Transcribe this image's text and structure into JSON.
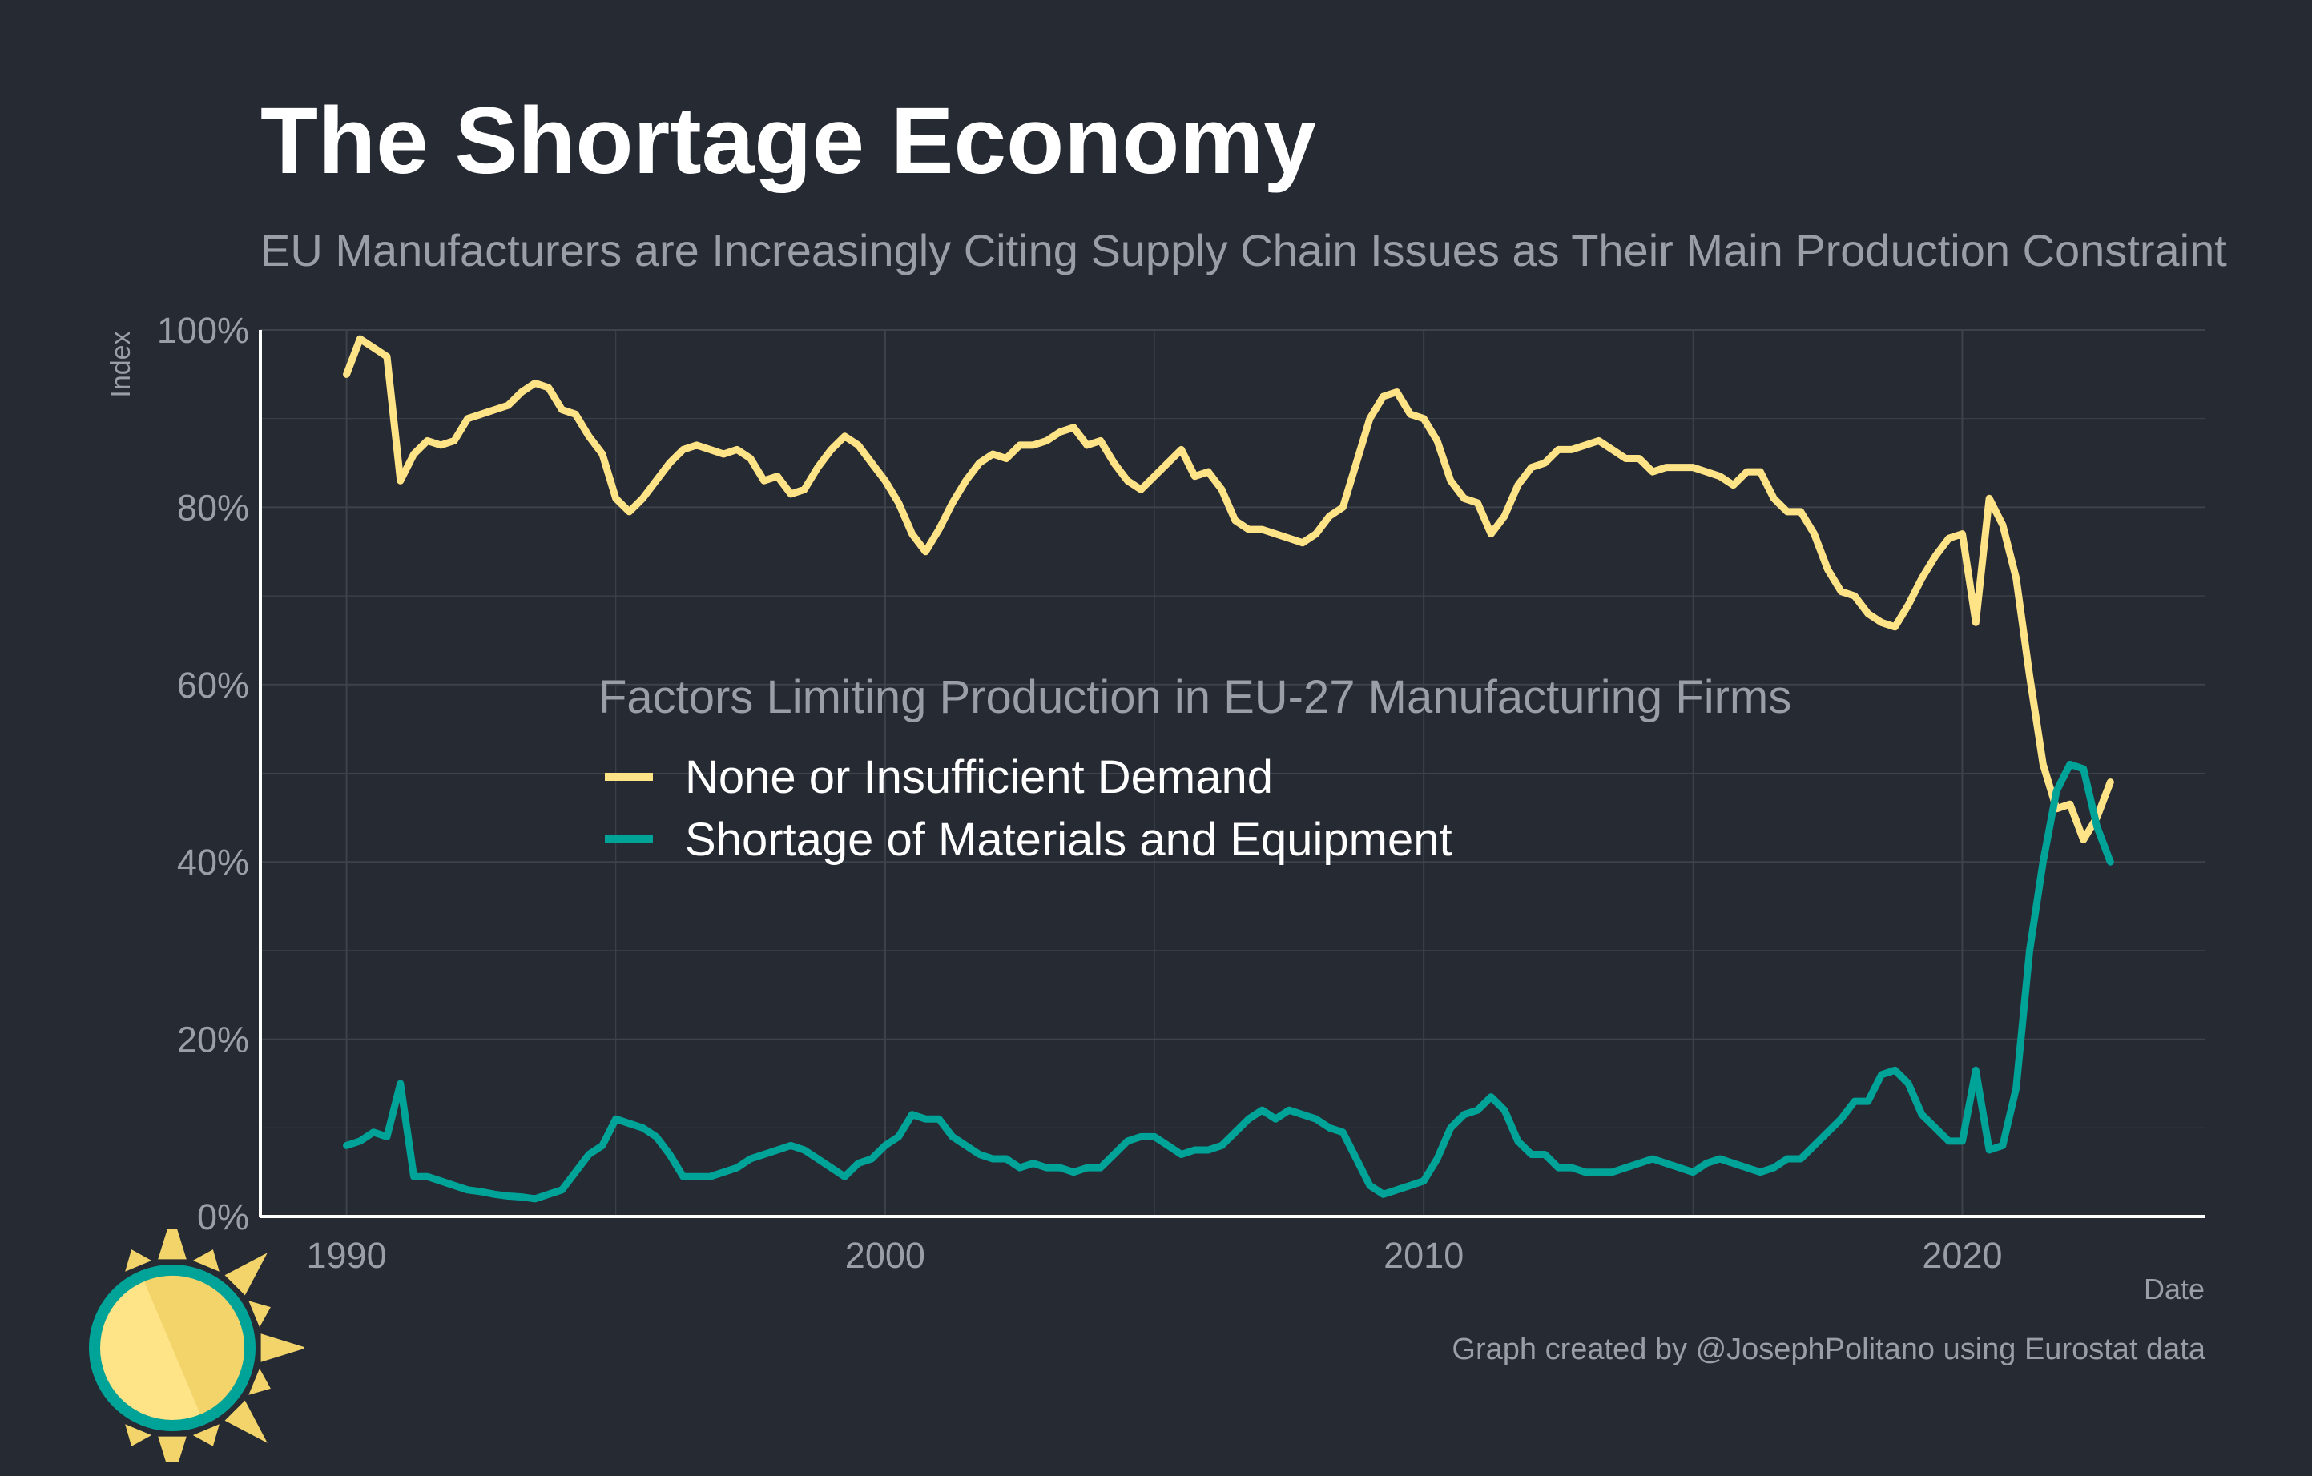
{
  "title": "The Shortage Economy",
  "subtitle": "EU Manufacturers are Increasingly Citing Supply Chain Issues as Their Main Production Constraint",
  "caption": "Graph created by @JosephPolitano using Eurostat data",
  "colors": {
    "background": "#252a33",
    "grid": "#3d424b",
    "axis": "#ffffff",
    "muted_text": "#9a9ea6",
    "demand": "#ffe387",
    "shortage": "#00a398"
  },
  "logo_icon": "sun-icon",
  "chart_data": {
    "type": "line",
    "xlabel": "Date",
    "ylabel": "Index",
    "xlim": [
      1988.4,
      2024.5
    ],
    "ylim": [
      0,
      100
    ],
    "x_ticks": [
      1990,
      2000,
      2010,
      2020
    ],
    "x_tick_labels": [
      "1990",
      "2000",
      "2010",
      "2020"
    ],
    "y_ticks": [
      0,
      20,
      40,
      60,
      80,
      100
    ],
    "y_tick_labels": [
      "0%",
      "20%",
      "40%",
      "60%",
      "80%",
      "100%"
    ],
    "grid": true,
    "legend": {
      "title": "Factors Limiting Production in EU-27 Manufacturing Firms",
      "position": "center"
    },
    "series": [
      {
        "name": "None or Insufficient Demand",
        "color": "#ffe387",
        "points": [
          [
            1990.0,
            95
          ],
          [
            1990.25,
            99
          ],
          [
            1990.5,
            98
          ],
          [
            1990.75,
            97
          ],
          [
            1991.0,
            83
          ],
          [
            1991.25,
            86
          ],
          [
            1991.5,
            87.5
          ],
          [
            1991.75,
            87
          ],
          [
            1992.0,
            87.5
          ],
          [
            1992.25,
            90
          ],
          [
            1992.5,
            90.5
          ],
          [
            1992.75,
            91
          ],
          [
            1993.0,
            91.5
          ],
          [
            1993.25,
            93
          ],
          [
            1993.5,
            94
          ],
          [
            1993.75,
            93.5
          ],
          [
            1994.0,
            91
          ],
          [
            1994.25,
            90.5
          ],
          [
            1994.5,
            88
          ],
          [
            1994.75,
            86
          ],
          [
            1995.0,
            81
          ],
          [
            1995.25,
            79.5
          ],
          [
            1995.5,
            81
          ],
          [
            1995.75,
            83
          ],
          [
            1996.0,
            85
          ],
          [
            1996.25,
            86.5
          ],
          [
            1996.5,
            87
          ],
          [
            1996.75,
            86.5
          ],
          [
            1997.0,
            86
          ],
          [
            1997.25,
            86.5
          ],
          [
            1997.5,
            85.5
          ],
          [
            1997.75,
            83
          ],
          [
            1998.0,
            83.5
          ],
          [
            1998.25,
            81.5
          ],
          [
            1998.5,
            82
          ],
          [
            1998.75,
            84.5
          ],
          [
            1999.0,
            86.5
          ],
          [
            1999.25,
            88
          ],
          [
            1999.5,
            87
          ],
          [
            1999.75,
            85
          ],
          [
            2000.0,
            83
          ],
          [
            2000.25,
            80.5
          ],
          [
            2000.5,
            77
          ],
          [
            2000.75,
            75
          ],
          [
            2001.0,
            77.5
          ],
          [
            2001.25,
            80.5
          ],
          [
            2001.5,
            83
          ],
          [
            2001.75,
            85
          ],
          [
            2002.0,
            86
          ],
          [
            2002.25,
            85.5
          ],
          [
            2002.5,
            87
          ],
          [
            2002.75,
            87
          ],
          [
            2003.0,
            87.5
          ],
          [
            2003.25,
            88.5
          ],
          [
            2003.5,
            89
          ],
          [
            2003.75,
            87
          ],
          [
            2004.0,
            87.5
          ],
          [
            2004.25,
            85
          ],
          [
            2004.5,
            83
          ],
          [
            2004.75,
            82
          ],
          [
            2005.0,
            83.5
          ],
          [
            2005.25,
            85
          ],
          [
            2005.5,
            86.5
          ],
          [
            2005.75,
            83.5
          ],
          [
            2006.0,
            84
          ],
          [
            2006.25,
            82
          ],
          [
            2006.5,
            78.5
          ],
          [
            2006.75,
            77.5
          ],
          [
            2007.0,
            77.5
          ],
          [
            2007.25,
            77
          ],
          [
            2007.5,
            76.5
          ],
          [
            2007.75,
            76
          ],
          [
            2008.0,
            77
          ],
          [
            2008.25,
            79
          ],
          [
            2008.5,
            80
          ],
          [
            2008.75,
            85
          ],
          [
            2009.0,
            90
          ],
          [
            2009.25,
            92.5
          ],
          [
            2009.5,
            93
          ],
          [
            2009.75,
            90.5
          ],
          [
            2010.0,
            90
          ],
          [
            2010.25,
            87.5
          ],
          [
            2010.5,
            83
          ],
          [
            2010.75,
            81
          ],
          [
            2011.0,
            80.5
          ],
          [
            2011.25,
            77
          ],
          [
            2011.5,
            79
          ],
          [
            2011.75,
            82.5
          ],
          [
            2012.0,
            84.5
          ],
          [
            2012.25,
            85
          ],
          [
            2012.5,
            86.5
          ],
          [
            2012.75,
            86.5
          ],
          [
            2013.0,
            87
          ],
          [
            2013.25,
            87.5
          ],
          [
            2013.5,
            86.5
          ],
          [
            2013.75,
            85.5
          ],
          [
            2014.0,
            85.5
          ],
          [
            2014.25,
            84
          ],
          [
            2014.5,
            84.5
          ],
          [
            2014.75,
            84.5
          ],
          [
            2015.0,
            84.5
          ],
          [
            2015.25,
            84
          ],
          [
            2015.5,
            83.5
          ],
          [
            2015.75,
            82.5
          ],
          [
            2016.0,
            84
          ],
          [
            2016.25,
            84
          ],
          [
            2016.5,
            81
          ],
          [
            2016.75,
            79.5
          ],
          [
            2017.0,
            79.5
          ],
          [
            2017.25,
            77
          ],
          [
            2017.5,
            73
          ],
          [
            2017.75,
            70.5
          ],
          [
            2018.0,
            70
          ],
          [
            2018.25,
            68
          ],
          [
            2018.5,
            67
          ],
          [
            2018.75,
            66.5
          ],
          [
            2019.0,
            69
          ],
          [
            2019.25,
            72
          ],
          [
            2019.5,
            74.5
          ],
          [
            2019.75,
            76.5
          ],
          [
            2020.0,
            77
          ],
          [
            2020.25,
            67
          ],
          [
            2020.5,
            81
          ],
          [
            2020.75,
            78
          ],
          [
            2021.0,
            72
          ],
          [
            2021.25,
            61
          ],
          [
            2021.5,
            51
          ],
          [
            2021.75,
            46
          ],
          [
            2022.0,
            46.5
          ],
          [
            2022.25,
            42.5
          ],
          [
            2022.5,
            45
          ],
          [
            2022.75,
            49
          ]
        ]
      },
      {
        "name": "Shortage of Materials and Equipment",
        "color": "#00a398",
        "points": [
          [
            1990.0,
            8
          ],
          [
            1990.25,
            8.5
          ],
          [
            1990.5,
            9.5
          ],
          [
            1990.75,
            9
          ],
          [
            1991.0,
            15
          ],
          [
            1991.25,
            4.5
          ],
          [
            1991.5,
            4.5
          ],
          [
            1991.75,
            4
          ],
          [
            1992.0,
            3.5
          ],
          [
            1992.25,
            3
          ],
          [
            1992.5,
            2.8
          ],
          [
            1992.75,
            2.5
          ],
          [
            1993.0,
            2.3
          ],
          [
            1993.25,
            2.2
          ],
          [
            1993.5,
            2
          ],
          [
            1993.75,
            2.5
          ],
          [
            1994.0,
            3
          ],
          [
            1994.25,
            5
          ],
          [
            1994.5,
            7
          ],
          [
            1994.75,
            8
          ],
          [
            1995.0,
            11
          ],
          [
            1995.25,
            10.5
          ],
          [
            1995.5,
            10
          ],
          [
            1995.75,
            9
          ],
          [
            1996.0,
            7
          ],
          [
            1996.25,
            4.5
          ],
          [
            1996.5,
            4.5
          ],
          [
            1996.75,
            4.5
          ],
          [
            1997.0,
            5
          ],
          [
            1997.25,
            5.5
          ],
          [
            1997.5,
            6.5
          ],
          [
            1997.75,
            7
          ],
          [
            1998.0,
            7.5
          ],
          [
            1998.25,
            8
          ],
          [
            1998.5,
            7.5
          ],
          [
            1998.75,
            6.5
          ],
          [
            1999.0,
            5.5
          ],
          [
            1999.25,
            4.5
          ],
          [
            1999.5,
            6
          ],
          [
            1999.75,
            6.5
          ],
          [
            2000.0,
            8
          ],
          [
            2000.25,
            9
          ],
          [
            2000.5,
            11.5
          ],
          [
            2000.75,
            11
          ],
          [
            2001.0,
            11
          ],
          [
            2001.25,
            9
          ],
          [
            2001.5,
            8
          ],
          [
            2001.75,
            7
          ],
          [
            2002.0,
            6.5
          ],
          [
            2002.25,
            6.5
          ],
          [
            2002.5,
            5.5
          ],
          [
            2002.75,
            6
          ],
          [
            2003.0,
            5.5
          ],
          [
            2003.25,
            5.5
          ],
          [
            2003.5,
            5
          ],
          [
            2003.75,
            5.5
          ],
          [
            2004.0,
            5.5
          ],
          [
            2004.25,
            7
          ],
          [
            2004.5,
            8.5
          ],
          [
            2004.75,
            9
          ],
          [
            2005.0,
            9
          ],
          [
            2005.25,
            8
          ],
          [
            2005.5,
            7
          ],
          [
            2005.75,
            7.5
          ],
          [
            2006.0,
            7.5
          ],
          [
            2006.25,
            8
          ],
          [
            2006.5,
            9.5
          ],
          [
            2006.75,
            11
          ],
          [
            2007.0,
            12
          ],
          [
            2007.25,
            11
          ],
          [
            2007.5,
            12
          ],
          [
            2007.75,
            11.5
          ],
          [
            2008.0,
            11
          ],
          [
            2008.25,
            10
          ],
          [
            2008.5,
            9.5
          ],
          [
            2008.75,
            6.5
          ],
          [
            2009.0,
            3.5
          ],
          [
            2009.25,
            2.5
          ],
          [
            2009.5,
            3
          ],
          [
            2009.75,
            3.5
          ],
          [
            2010.0,
            4
          ],
          [
            2010.25,
            6.5
          ],
          [
            2010.5,
            10
          ],
          [
            2010.75,
            11.5
          ],
          [
            2011.0,
            12
          ],
          [
            2011.25,
            13.5
          ],
          [
            2011.5,
            12
          ],
          [
            2011.75,
            8.5
          ],
          [
            2012.0,
            7
          ],
          [
            2012.25,
            7
          ],
          [
            2012.5,
            5.5
          ],
          [
            2012.75,
            5.5
          ],
          [
            2013.0,
            5
          ],
          [
            2013.25,
            5
          ],
          [
            2013.5,
            5
          ],
          [
            2013.75,
            5.5
          ],
          [
            2014.0,
            6
          ],
          [
            2014.25,
            6.5
          ],
          [
            2014.5,
            6
          ],
          [
            2014.75,
            5.5
          ],
          [
            2015.0,
            5
          ],
          [
            2015.25,
            6
          ],
          [
            2015.5,
            6.5
          ],
          [
            2015.75,
            6
          ],
          [
            2016.0,
            5.5
          ],
          [
            2016.25,
            5
          ],
          [
            2016.5,
            5.5
          ],
          [
            2016.75,
            6.5
          ],
          [
            2017.0,
            6.5
          ],
          [
            2017.25,
            8
          ],
          [
            2017.5,
            9.5
          ],
          [
            2017.75,
            11
          ],
          [
            2018.0,
            13
          ],
          [
            2018.25,
            13
          ],
          [
            2018.5,
            16
          ],
          [
            2018.75,
            16.5
          ],
          [
            2019.0,
            15
          ],
          [
            2019.25,
            11.5
          ],
          [
            2019.5,
            10
          ],
          [
            2019.75,
            8.5
          ],
          [
            2020.0,
            8.5
          ],
          [
            2020.25,
            16.5
          ],
          [
            2020.5,
            7.5
          ],
          [
            2020.75,
            8
          ],
          [
            2021.0,
            14.5
          ],
          [
            2021.25,
            30
          ],
          [
            2021.5,
            40
          ],
          [
            2021.75,
            48
          ],
          [
            2022.0,
            51
          ],
          [
            2022.25,
            50.5
          ],
          [
            2022.5,
            44
          ],
          [
            2022.75,
            40
          ]
        ]
      }
    ]
  }
}
